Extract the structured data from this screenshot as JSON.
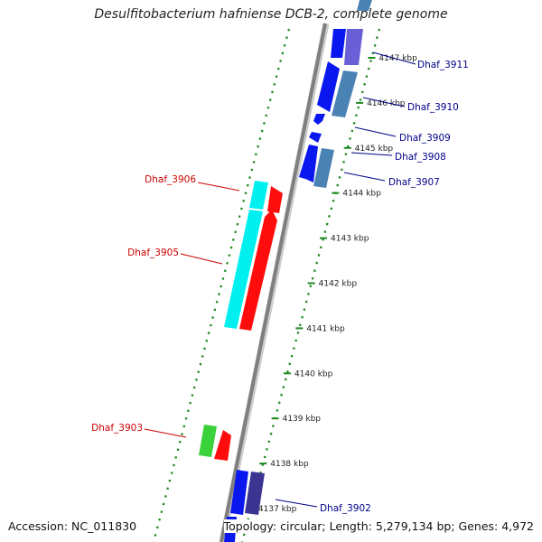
{
  "title": "Desulfitobacterium hafniense DCB-2, complete genome",
  "accession": "Accession: NC_011830",
  "summary": "Topology: circular; Length: 5,279,134 bp; Genes: 4,972",
  "colors": {
    "backbone": "#7f7f7f",
    "tick": "#1f8a1f",
    "forward_label": "#00008b",
    "reverse_label": "#cc0000",
    "blue": "#0a17ee",
    "steel": "#4a82b4",
    "slate": "#6a5fd6",
    "navy": "#3b3490",
    "cyan": "#00f0f0",
    "red": "#ff0d0d",
    "green": "#3ad23a"
  },
  "ticks": [
    {
      "label": "4137 kbp",
      "kbp": 4137
    },
    {
      "label": "4138 kbp",
      "kbp": 4138
    },
    {
      "label": "4139 kbp",
      "kbp": 4139
    },
    {
      "label": "4140 kbp",
      "kbp": 4140
    },
    {
      "label": "4141 kbp",
      "kbp": 4141
    },
    {
      "label": "4142 kbp",
      "kbp": 4142
    },
    {
      "label": "4143 kbp",
      "kbp": 4143
    },
    {
      "label": "4144 kbp",
      "kbp": 4144
    },
    {
      "label": "4145 kbp",
      "kbp": 4145
    },
    {
      "label": "4146 kbp",
      "kbp": 4146
    },
    {
      "label": "4147 kbp",
      "kbp": 4147
    }
  ],
  "genes": [
    {
      "name": "Dhaf_3911",
      "strand": "forward"
    },
    {
      "name": "Dhaf_3910",
      "strand": "forward"
    },
    {
      "name": "Dhaf_3909",
      "strand": "forward"
    },
    {
      "name": "Dhaf_3908",
      "strand": "forward"
    },
    {
      "name": "Dhaf_3907",
      "strand": "forward"
    },
    {
      "name": "Dhaf_3906",
      "strand": "reverse"
    },
    {
      "name": "Dhaf_3905",
      "strand": "reverse"
    },
    {
      "name": "Dhaf_3903",
      "strand": "reverse"
    },
    {
      "name": "Dhaf_3902",
      "strand": "forward"
    }
  ]
}
